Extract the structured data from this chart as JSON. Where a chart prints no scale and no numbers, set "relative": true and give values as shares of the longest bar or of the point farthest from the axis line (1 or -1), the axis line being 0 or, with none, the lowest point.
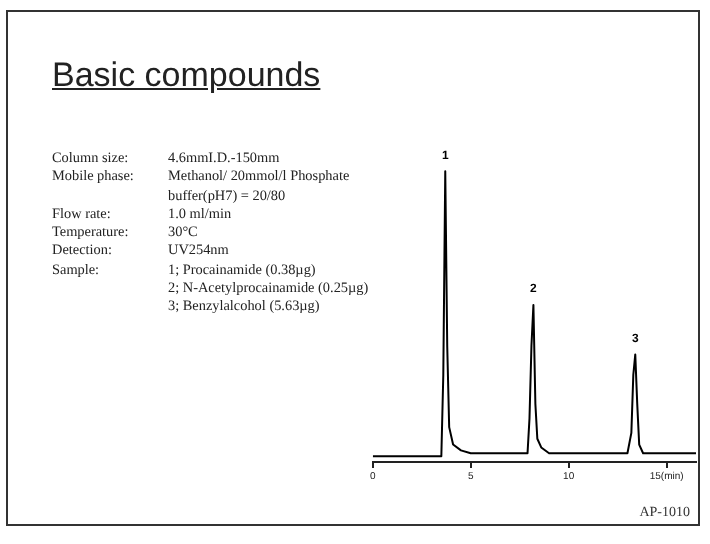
{
  "chart_data": {
    "type": "line",
    "title": "Basic compounds",
    "relative": true,
    "legend": false,
    "grid": false,
    "marker": "none",
    "line_style": "solid",
    "tick_labels": "x",
    "x": [
      0,
      3.5,
      3.6,
      3.7,
      3.8,
      3.9,
      4.1,
      4.5,
      5,
      7.9,
      8.0,
      8.1,
      8.2,
      8.3,
      8.4,
      8.6,
      9.0,
      9.5,
      13.0,
      13.2,
      13.3,
      13.4,
      13.5,
      13.6,
      13.8,
      14.5,
      16.5
    ],
    "series": [
      {
        "color": "#000000",
        "values": [
          0.02,
          0.02,
          0.3,
          1,
          0.4,
          0.12,
          0.06,
          0.04,
          0.03,
          0.03,
          0.15,
          0.4,
          0.54,
          0.2,
          0.08,
          0.05,
          0.03,
          0.03,
          0.03,
          0.1,
          0.3,
          0.37,
          0.2,
          0.06,
          0.03,
          0.03,
          0.03
        ]
      }
    ],
    "xlim": [
      0,
      16.5
    ],
    "xticks": [
      0,
      5,
      10,
      {
        "value": 15,
        "label": "15(min)"
      }
    ],
    "annotations": [
      {
        "text": "1",
        "x": 3.7,
        "y": 1
      },
      {
        "text": "2",
        "x": 8.2,
        "y": 0.54
      },
      {
        "text": "3",
        "x": 13.4,
        "y": 0.37
      },
      "Column size:",
      "4.6mmI.D.-150mm",
      "Mobile phase:",
      "Methanol/ 20mmol/l Phosphate buffer(pH7) = 20/80",
      "Flow rate:",
      "1.0 ml/min",
      "Temperature:",
      "30°C",
      "Detection:",
      "UV254nm",
      "Sample:",
      "1; Procainamide (0.38µg)\n2; N-Acetylprocainamide (0.25µg)\n3; Benzylalcohol (5.63µg)",
      "AP-1010"
    ]
  }
}
